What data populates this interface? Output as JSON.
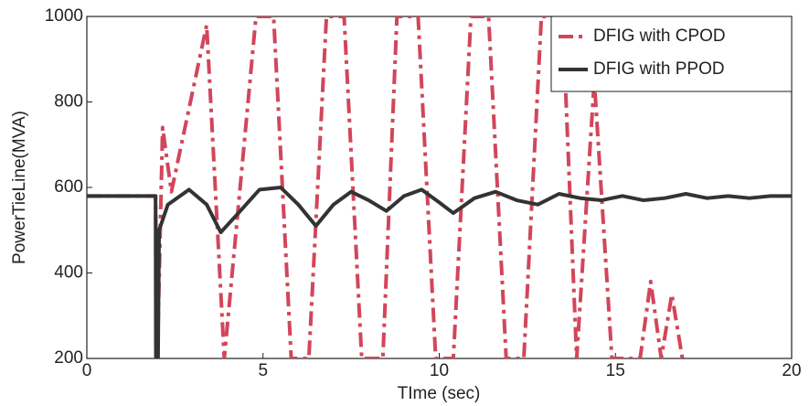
{
  "chart_data": {
    "type": "line",
    "xlabel": "TIme (sec)",
    "ylabel": "PowerTieLine(MVA)",
    "xlim": [
      0,
      20
    ],
    "ylim": [
      200,
      1000
    ],
    "xticks": [
      0,
      5,
      10,
      15,
      20
    ],
    "yticks": [
      200,
      400,
      600,
      800,
      1000
    ],
    "legend": "upper right",
    "series": [
      {
        "name": "DFIG with CPOD",
        "color": "#d2465a",
        "style": "dashdot",
        "x": [
          0,
          1.95,
          2.0,
          2.15,
          2.4,
          3.4,
          3.9,
          4.8,
          5.3,
          5.8,
          6.3,
          6.8,
          7.3,
          7.8,
          8.4,
          8.8,
          9.4,
          9.9,
          10.4,
          10.9,
          11.4,
          11.9,
          12.4,
          12.9,
          13.5,
          13.9,
          14.4,
          14.9,
          15.7,
          16.0,
          16.3,
          16.6,
          16.9
        ],
        "values": [
          580,
          580,
          200,
          740,
          590,
          980,
          200,
          1000,
          1000,
          200,
          200,
          1000,
          1000,
          200,
          200,
          1000,
          1000,
          200,
          200,
          1000,
          1000,
          200,
          200,
          1000,
          1000,
          200,
          850,
          200,
          200,
          380,
          200,
          350,
          200
        ]
      },
      {
        "name": "DFIG with PPOD",
        "color": "#333333",
        "style": "solid",
        "x": [
          0,
          1.95,
          1.96,
          2.02,
          2.05,
          2.3,
          2.9,
          3.4,
          3.8,
          4.3,
          4.9,
          5.5,
          6.0,
          6.5,
          7.0,
          7.5,
          8.0,
          8.5,
          9.0,
          9.5,
          10.0,
          10.4,
          11.0,
          11.6,
          12.2,
          12.8,
          13.4,
          14.0,
          14.6,
          15.2,
          15.8,
          16.4,
          17.0,
          17.6,
          18.2,
          18.8,
          19.4,
          20
        ],
        "values": [
          580,
          580,
          200,
          200,
          500,
          560,
          595,
          560,
          495,
          540,
          595,
          600,
          560,
          510,
          560,
          590,
          570,
          545,
          580,
          595,
          565,
          540,
          575,
          590,
          570,
          560,
          585,
          575,
          570,
          580,
          570,
          575,
          585,
          575,
          580,
          575,
          580,
          580
        ]
      }
    ]
  }
}
